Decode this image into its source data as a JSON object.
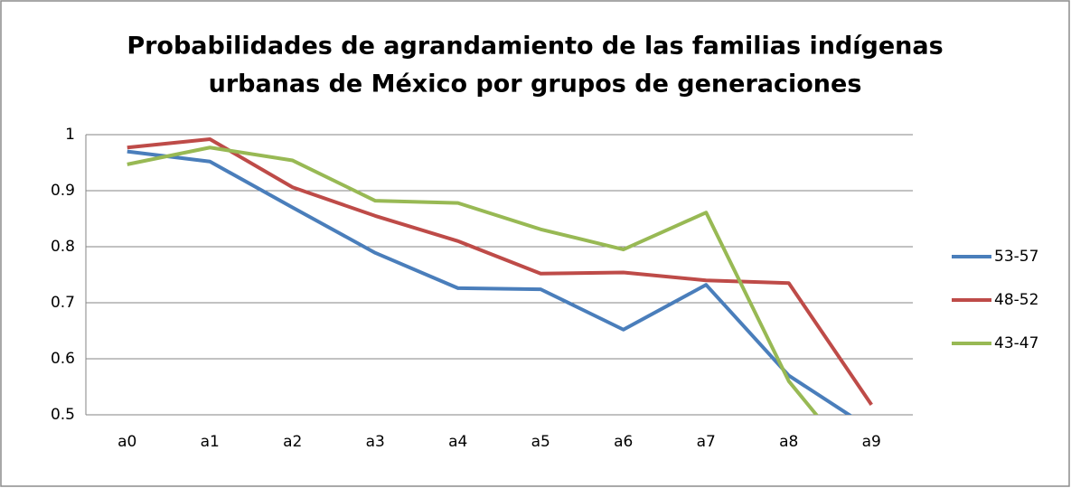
{
  "chart_data": {
    "type": "line",
    "title": [
      "Probabilidades de agrandamiento de las familias indígenas",
      "urbanas  de México  por grupos de generaciones"
    ],
    "categories": [
      "a0",
      "a1",
      "a2",
      "a3",
      "a4",
      "a5",
      "a6",
      "a7",
      "a8",
      "a9"
    ],
    "series": [
      {
        "name": "53-57",
        "color": "#4a7ebb",
        "values": [
          0.97,
          0.952,
          0.87,
          0.789,
          0.726,
          0.724,
          0.652,
          0.732,
          0.57,
          0.474
        ]
      },
      {
        "name": "48-52",
        "color": "#be4b48",
        "values": [
          0.977,
          0.992,
          0.906,
          0.855,
          0.81,
          0.752,
          0.754,
          0.74,
          0.735,
          0.518
        ]
      },
      {
        "name": "43-47",
        "color": "#98b954",
        "values": [
          0.947,
          0.977,
          0.954,
          0.882,
          0.878,
          0.831,
          0.795,
          0.861,
          0.56,
          0.38
        ]
      }
    ],
    "ylim": [
      0.5,
      1
    ],
    "yticks": [
      0.5,
      0.6,
      0.7,
      0.8,
      0.9,
      1
    ],
    "grid": true,
    "legend": "right"
  }
}
